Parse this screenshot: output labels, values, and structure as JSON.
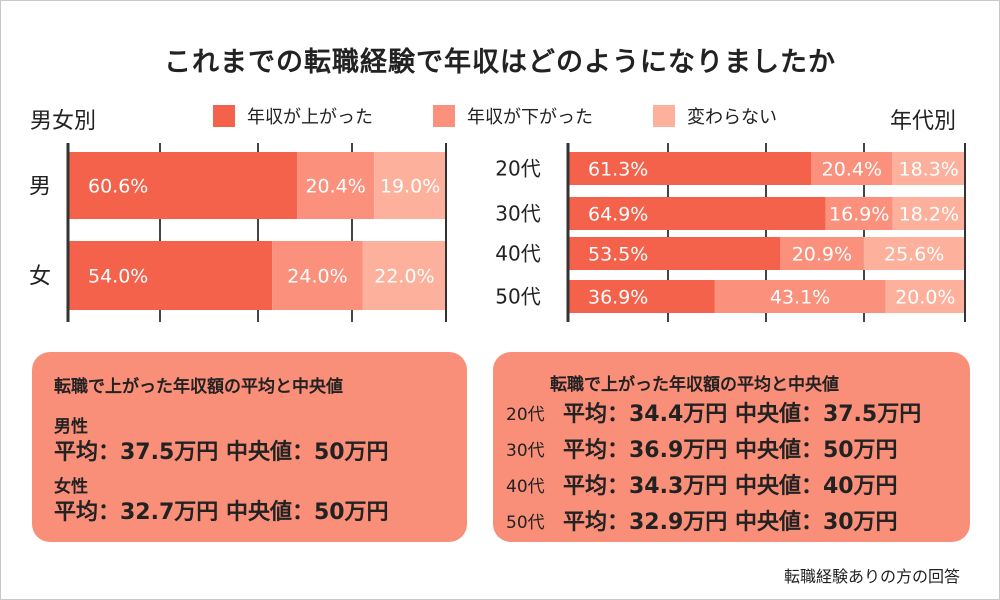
{
  "title": "これまでの転職経験で年収はどのようになりましたか",
  "left_heading": "男女別",
  "right_heading": "年代別",
  "legend": [
    {
      "label": "年収が上がった",
      "color": "#f4624b"
    },
    {
      "label": "年収が下がった",
      "color": "#fb917d"
    },
    {
      "label": "変わらない",
      "color": "#fdb19c"
    }
  ],
  "chart_data": [
    {
      "type": "bar",
      "orientation": "horizontal",
      "stacked": true,
      "title": "男女別",
      "categories": [
        "男",
        "女"
      ],
      "series": [
        {
          "name": "年収が上がった",
          "values": [
            60.6,
            54.0
          ]
        },
        {
          "name": "年収が下がった",
          "values": [
            20.4,
            24.0
          ]
        },
        {
          "name": "変わらない",
          "values": [
            19.0,
            22.0
          ]
        }
      ],
      "labels": [
        [
          "60.6%",
          "20.4%",
          "19.0%"
        ],
        [
          "54.0%",
          "24.0%",
          "22.0%"
        ]
      ],
      "xlim": [
        0,
        100
      ]
    },
    {
      "type": "bar",
      "orientation": "horizontal",
      "stacked": true,
      "title": "年代別",
      "categories": [
        "20代",
        "30代",
        "40代",
        "50代"
      ],
      "series": [
        {
          "name": "年収が上がった",
          "values": [
            61.3,
            64.9,
            53.5,
            36.9
          ]
        },
        {
          "name": "年収が下がった",
          "values": [
            20.4,
            16.9,
            20.9,
            43.1
          ]
        },
        {
          "name": "変わらない",
          "values": [
            18.3,
            18.2,
            25.6,
            20.0
          ]
        }
      ],
      "labels": [
        [
          "61.3%",
          "20.4%",
          "18.3%"
        ],
        [
          "64.9%",
          "16.9%",
          "18.2%"
        ],
        [
          "53.5%",
          "20.9%",
          "25.6%"
        ],
        [
          "36.9%",
          "43.1%",
          "20.0%"
        ]
      ],
      "xlim": [
        0,
        100
      ]
    }
  ],
  "left_panel": {
    "heading": "転職で上がった年収額の平均と中央値",
    "groups": [
      {
        "label": "男性",
        "stats": "平均：37.5万円  中央値：50万円"
      },
      {
        "label": "女性",
        "stats": "平均：32.7万円  中央値：50万円"
      }
    ]
  },
  "right_panel": {
    "heading": "転職で上がった年収額の平均と中央値",
    "rows": [
      {
        "label": "20代",
        "stats": "平均：34.4万円  中央値：37.5万円"
      },
      {
        "label": "30代",
        "stats": "平均：36.9万円  中央値：50万円"
      },
      {
        "label": "40代",
        "stats": "平均：34.3万円  中央値：40万円"
      },
      {
        "label": "50代",
        "stats": "平均：32.9万円  中央値：30万円"
      }
    ]
  },
  "footnote": "転職経験ありの方の回答"
}
